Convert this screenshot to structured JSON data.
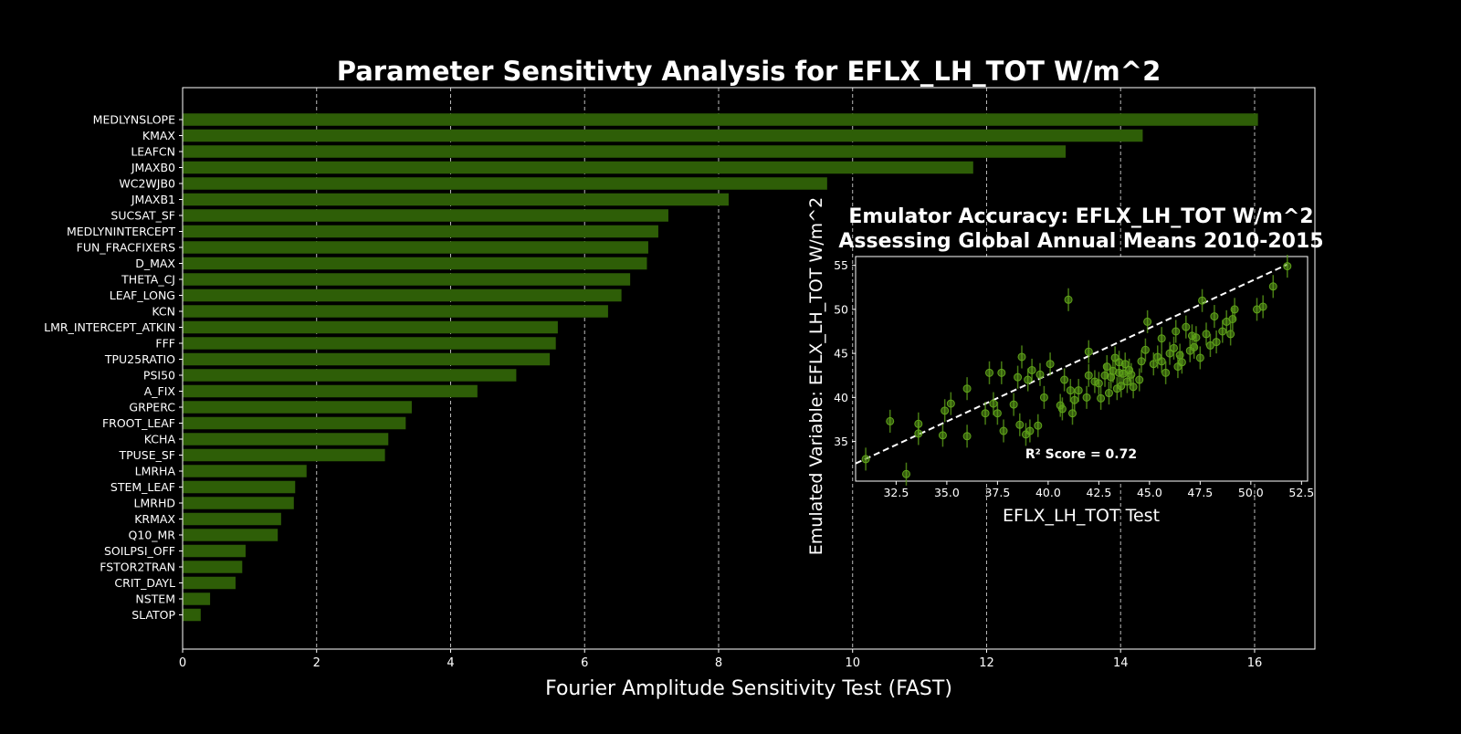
{
  "chart_data": [
    {
      "type": "bar",
      "orientation": "horizontal",
      "title": "Parameter Sensitivty Analysis for EFLX_LH_TOT W/m^2",
      "xlabel": "Fourier Amplitude Sensitivity Test (FAST)",
      "ylabel": "",
      "xlim": [
        0,
        16.9
      ],
      "xticks": [
        0,
        2,
        4,
        6,
        8,
        10,
        12,
        14,
        16
      ],
      "grid": "vertical dashed",
      "bar_color": "#2e5e07",
      "categories": [
        "MEDLYNSLOPE",
        "KMAX",
        "LEAFCN",
        "JMAXB0",
        "WC2WJB0",
        "JMAXB1",
        "SUCSAT_SF",
        "MEDLYNINTERCEPT",
        "FUN_FRACFIXERS",
        "D_MAX",
        "THETA_CJ",
        "LEAF_LONG",
        "KCN",
        "LMR_INTERCEPT_ATKIN",
        "FFF",
        "TPU25RATIO",
        "PSI50",
        "A_FIX",
        "GRPERC",
        "FROOT_LEAF",
        "KCHA",
        "TPUSE_SF",
        "LMRHA",
        "STEM_LEAF",
        "LMRHD",
        "KRMAX",
        "Q10_MR",
        "SOILPSI_OFF",
        "FSTOR2TRAN",
        "CRIT_DAYL",
        "NSTEM",
        "SLATOP"
      ],
      "values": [
        16.05,
        14.33,
        13.18,
        11.8,
        9.62,
        8.15,
        7.25,
        7.1,
        6.95,
        6.93,
        6.68,
        6.55,
        6.35,
        5.6,
        5.57,
        5.48,
        4.98,
        4.4,
        3.42,
        3.33,
        3.07,
        3.02,
        1.85,
        1.68,
        1.66,
        1.47,
        1.42,
        0.94,
        0.89,
        0.79,
        0.41,
        0.27
      ]
    },
    {
      "type": "scatter",
      "title": "Emulator Accuracy: EFLX_LH_TOT W/m^2",
      "subtitle": "Assessing Global Annual Means 2010-2015",
      "xlabel": "EFLX_LH_TOT Test",
      "ylabel": "Emulated Variable: EFLX_LH_TOT W/m^2",
      "xlim": [
        30.5,
        52.8
      ],
      "ylim": [
        30.5,
        56
      ],
      "xticks": [
        32.5,
        35.0,
        37.5,
        40.0,
        42.5,
        45.0,
        47.5,
        50.0,
        52.5
      ],
      "yticks": [
        35,
        40,
        45,
        50,
        55
      ],
      "annotation": "R² Score = 0.72",
      "point_color": "#5fa31a",
      "reference_line": {
        "x": [
          30.5,
          51.8
        ],
        "y": [
          32.5,
          55.1
        ],
        "style": "dashed",
        "color": "#ffffff"
      },
      "points": [
        [
          31.0,
          33.0
        ],
        [
          32.2,
          37.3
        ],
        [
          33.0,
          31.3
        ],
        [
          33.6,
          35.9
        ],
        [
          33.6,
          37.0
        ],
        [
          34.8,
          35.7
        ],
        [
          34.9,
          38.5
        ],
        [
          35.2,
          39.3
        ],
        [
          36.0,
          35.6
        ],
        [
          36.0,
          41.0
        ],
        [
          36.9,
          38.2
        ],
        [
          37.1,
          42.8
        ],
        [
          37.3,
          39.3
        ],
        [
          37.5,
          38.2
        ],
        [
          37.7,
          42.8
        ],
        [
          37.8,
          36.2
        ],
        [
          38.3,
          39.2
        ],
        [
          38.5,
          42.3
        ],
        [
          38.6,
          36.9
        ],
        [
          38.7,
          44.6
        ],
        [
          38.9,
          35.8
        ],
        [
          39.0,
          42.0
        ],
        [
          39.1,
          36.2
        ],
        [
          39.2,
          43.1
        ],
        [
          39.5,
          36.8
        ],
        [
          39.6,
          42.6
        ],
        [
          39.8,
          40.0
        ],
        [
          40.1,
          43.8
        ],
        [
          40.6,
          39.1
        ],
        [
          40.7,
          38.7
        ],
        [
          40.8,
          42.0
        ],
        [
          41.0,
          51.1
        ],
        [
          41.1,
          40.8
        ],
        [
          41.2,
          38.2
        ],
        [
          41.3,
          39.7
        ],
        [
          41.5,
          40.8
        ],
        [
          41.9,
          40.0
        ],
        [
          42.0,
          42.5
        ],
        [
          42.0,
          45.2
        ],
        [
          42.3,
          41.8
        ],
        [
          42.5,
          41.6
        ],
        [
          42.6,
          39.9
        ],
        [
          42.8,
          42.5
        ],
        [
          42.9,
          43.5
        ],
        [
          43.0,
          40.5
        ],
        [
          43.1,
          42.3
        ],
        [
          43.2,
          43.0
        ],
        [
          43.3,
          44.5
        ],
        [
          43.4,
          41.0
        ],
        [
          43.5,
          42.8
        ],
        [
          43.5,
          44.0
        ],
        [
          43.6,
          41.3
        ],
        [
          43.7,
          42.7
        ],
        [
          43.8,
          43.8
        ],
        [
          43.9,
          41.8
        ],
        [
          44.0,
          43.1
        ],
        [
          44.1,
          42.6
        ],
        [
          44.2,
          41.2
        ],
        [
          44.5,
          42.0
        ],
        [
          44.6,
          44.1
        ],
        [
          44.8,
          45.4
        ],
        [
          44.9,
          48.6
        ],
        [
          45.2,
          43.8
        ],
        [
          45.4,
          44.6
        ],
        [
          45.6,
          46.7
        ],
        [
          45.6,
          44.1
        ],
        [
          45.8,
          42.8
        ],
        [
          46.0,
          45.0
        ],
        [
          46.2,
          45.6
        ],
        [
          46.3,
          47.5
        ],
        [
          46.4,
          43.5
        ],
        [
          46.5,
          44.8
        ],
        [
          46.6,
          44.0
        ],
        [
          46.8,
          48.0
        ],
        [
          47.0,
          45.3
        ],
        [
          47.1,
          47.0
        ],
        [
          47.2,
          45.7
        ],
        [
          47.3,
          46.8
        ],
        [
          47.5,
          44.5
        ],
        [
          47.6,
          51.0
        ],
        [
          47.8,
          47.2
        ],
        [
          48.0,
          45.9
        ],
        [
          48.2,
          49.2
        ],
        [
          48.3,
          46.3
        ],
        [
          48.6,
          47.5
        ],
        [
          48.8,
          48.6
        ],
        [
          49.0,
          47.2
        ],
        [
          49.1,
          48.9
        ],
        [
          49.2,
          50.0
        ],
        [
          50.3,
          50.0
        ],
        [
          50.6,
          50.3
        ],
        [
          51.1,
          52.6
        ],
        [
          51.8,
          54.9
        ]
      ]
    }
  ]
}
